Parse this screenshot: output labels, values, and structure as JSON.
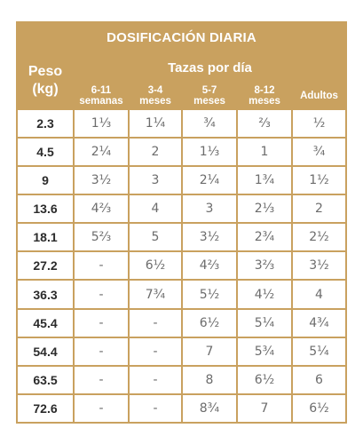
{
  "title": "DOSIFICACIÓN DIARIA",
  "weight_header": {
    "line1": "Peso",
    "line2": "(kg)"
  },
  "cups_header": "Tazas por día",
  "age_groups": [
    {
      "line1": "6-11",
      "line2": "semanas"
    },
    {
      "line1": "3-4",
      "line2": "meses"
    },
    {
      "line1": "5-7",
      "line2": "meses"
    },
    {
      "line1": "8-12",
      "line2": "meses"
    },
    {
      "line1": "Adultos",
      "line2": ""
    }
  ],
  "rows": [
    {
      "weight": "2.3",
      "values": [
        "1⅓",
        "1¼",
        "¾",
        "⅔",
        "½"
      ]
    },
    {
      "weight": "4.5",
      "values": [
        "2¼",
        "2",
        "1⅓",
        "1",
        "¾"
      ]
    },
    {
      "weight": "9",
      "values": [
        "3½",
        "3",
        "2¼",
        "1¾",
        "1½"
      ]
    },
    {
      "weight": "13.6",
      "values": [
        "4⅔",
        "4",
        "3",
        "2⅓",
        "2"
      ]
    },
    {
      "weight": "18.1",
      "values": [
        "5⅔",
        "5",
        "3½",
        "2¾",
        "2½"
      ]
    },
    {
      "weight": "27.2",
      "values": [
        "-",
        "6½",
        "4⅔",
        "3⅔",
        "3½"
      ]
    },
    {
      "weight": "36.3",
      "values": [
        "-",
        "7¾",
        "5½",
        "4½",
        "4"
      ]
    },
    {
      "weight": "45.4",
      "values": [
        "-",
        "-",
        "6½",
        "5¼",
        "4¾"
      ]
    },
    {
      "weight": "54.4",
      "values": [
        "-",
        "-",
        "7",
        "5¾",
        "5¼"
      ]
    },
    {
      "weight": "63.5",
      "values": [
        "-",
        "-",
        "8",
        "6½",
        "6"
      ]
    },
    {
      "weight": "72.6",
      "values": [
        "-",
        "-",
        "8¾",
        "7",
        "6½"
      ]
    }
  ],
  "colors": {
    "header_gold": "#c9a15f",
    "weight_text": "#2b2b2b",
    "value_text": "#6c6c6c"
  }
}
